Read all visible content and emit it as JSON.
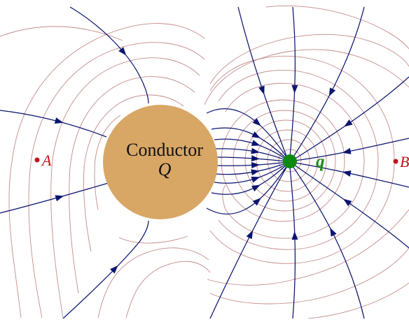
{
  "conductor": {
    "label": "Conductor",
    "symbol": "Q"
  },
  "point_charge": {
    "symbol": "q"
  },
  "points": {
    "a": "A",
    "b": "B"
  },
  "colors": {
    "background": "#ffffff",
    "conductor_fill": "#d8a766",
    "point_charge": "#0c8a0c",
    "field_lines": "#0b1570",
    "equipotential_lines": "#c48a8a",
    "point_labels": "#c0141a",
    "charge_label": "#1f8a1f",
    "conductor_text": "#111111"
  }
}
